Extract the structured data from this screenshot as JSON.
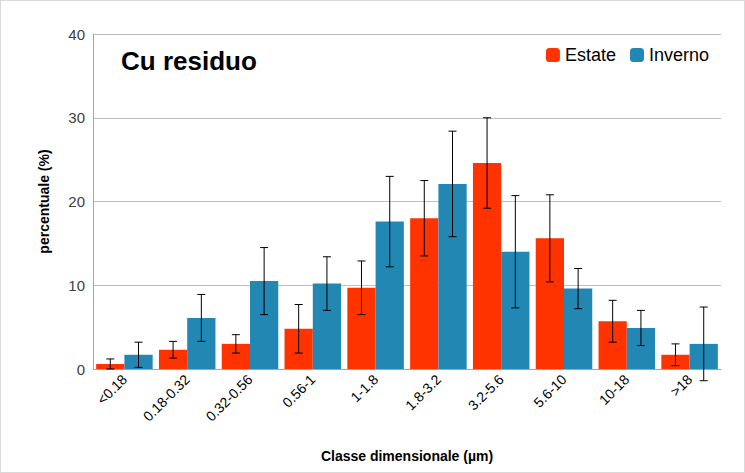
{
  "chart_data": {
    "type": "bar",
    "title": "Cu residuo",
    "x_label": "Classe dimensionale (µm)",
    "y_label": "percentuale (%)",
    "categories": [
      "<0.18",
      "0.18-0.32",
      "0.32-0.56",
      "0.56-1",
      "1-1.8",
      "1.8-3.2",
      "3.2-5.6",
      "5.6-10",
      "10-18",
      ">18"
    ],
    "series": [
      {
        "name": "Estate",
        "color": "#ff3300",
        "values": [
          0.6,
          2.3,
          3.0,
          4.8,
          9.7,
          18.0,
          24.6,
          15.6,
          5.7,
          1.7
        ],
        "errors": [
          0.6,
          1.0,
          1.1,
          2.9,
          3.2,
          4.5,
          5.4,
          5.2,
          2.5,
          1.3
        ]
      },
      {
        "name": "Inverno",
        "color": "#2287b3",
        "values": [
          1.7,
          6.1,
          10.5,
          10.2,
          17.6,
          22.1,
          14.0,
          9.6,
          4.9,
          3.0
        ],
        "errors": [
          1.5,
          2.8,
          4.0,
          3.2,
          5.4,
          6.3,
          6.7,
          2.4,
          2.1,
          4.4
        ]
      }
    ],
    "ylim": [
      0,
      40
    ],
    "yticks": [
      0,
      10,
      20,
      30,
      40
    ],
    "grid": true,
    "legend": "upper right"
  }
}
